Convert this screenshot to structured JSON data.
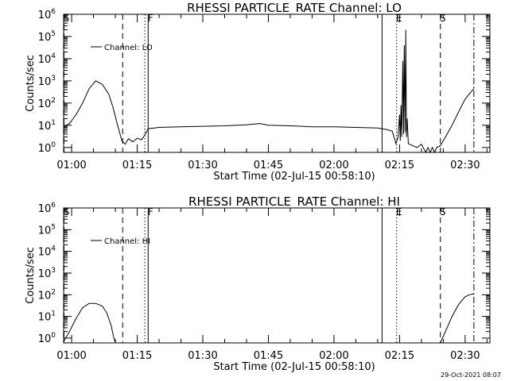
{
  "timestamp": "29-Oct-2021 08:07",
  "chart_data": [
    {
      "type": "line",
      "title": "RHESSI PARTICLE_RATE Channel: LO",
      "xlabel": "Start Time (02-Jul-15 00:58:10)",
      "ylabel": "Counts/sec",
      "legend": "Channel: LO",
      "legend_position": "top-left",
      "yscale": "log",
      "xlim": [
        "00:58:10",
        "02:35:40"
      ],
      "ylim": [
        0.6,
        1000000
      ],
      "x_ticks": [
        "01:00",
        "01:15",
        "01:30",
        "01:45",
        "02:00",
        "02:15",
        "02:30"
      ],
      "y_ticks": [
        "10^0",
        "10^1",
        "10^2",
        "10^3",
        "10^4",
        "10^5",
        "10^6"
      ],
      "markers": [
        {
          "time": "00:58:15",
          "label": "S",
          "style": "dashed"
        },
        {
          "time": "01:11:40",
          "label": "",
          "style": "dashed"
        },
        {
          "time": "01:16:45",
          "label": "",
          "style": "dotted"
        },
        {
          "time": "01:17:30",
          "label": "F",
          "style": "solid"
        },
        {
          "time": "02:11:00",
          "label": "",
          "style": "solid"
        },
        {
          "time": "02:14:20",
          "label": "E",
          "style": "dotted"
        },
        {
          "time": "02:24:20",
          "label": "S",
          "style": "dashed"
        },
        {
          "time": "02:32:00",
          "label": "",
          "style": "dashdot"
        }
      ],
      "series": [
        {
          "name": "Channel: LO",
          "points": [
            [
              "00:58:10",
              8
            ],
            [
              "00:59:30",
              12
            ],
            [
              "01:01:00",
              30
            ],
            [
              "01:02:30",
              100
            ],
            [
              "01:04:00",
              450
            ],
            [
              "01:05:30",
              1000
            ],
            [
              "01:07:00",
              700
            ],
            [
              "01:08:30",
              250
            ],
            [
              "01:09:30",
              60
            ],
            [
              "01:10:30",
              10
            ],
            [
              "01:11:30",
              2
            ],
            [
              "01:12:15",
              1.4
            ],
            [
              "01:13:00",
              2.5
            ],
            [
              "01:14:00",
              1.8
            ],
            [
              "01:15:00",
              2.6
            ],
            [
              "01:16:00",
              2.2
            ],
            [
              "01:16:40",
              3.5
            ],
            [
              "01:17:30",
              7
            ],
            [
              "01:20:00",
              8
            ],
            [
              "01:25:00",
              8.5
            ],
            [
              "01:30:00",
              9
            ],
            [
              "01:35:00",
              9.5
            ],
            [
              "01:40:00",
              10.5
            ],
            [
              "01:43:00",
              12
            ],
            [
              "01:45:00",
              10
            ],
            [
              "01:50:00",
              9.5
            ],
            [
              "01:55:00",
              8.5
            ],
            [
              "02:00:00",
              8.5
            ],
            [
              "02:05:00",
              8
            ],
            [
              "02:10:00",
              7.5
            ],
            [
              "02:12:00",
              6.5
            ],
            [
              "02:13:20",
              5.5
            ],
            [
              "02:14:10",
              1.5
            ],
            [
              "02:14:40",
              3
            ],
            [
              "02:15:00",
              30
            ],
            [
              "02:15:10",
              2
            ],
            [
              "02:15:20",
              80
            ],
            [
              "02:15:30",
              3
            ],
            [
              "02:15:45",
              8000
            ],
            [
              "02:15:55",
              4
            ],
            [
              "02:16:05",
              40000
            ],
            [
              "02:16:15",
              5
            ],
            [
              "02:16:25",
              200000
            ],
            [
              "02:16:35",
              3
            ],
            [
              "02:16:45",
              20
            ],
            [
              "02:17:00",
              1.5
            ],
            [
              "02:18:00",
              1.2
            ],
            [
              "02:19:00",
              1.0
            ],
            [
              "02:20:00",
              1.4
            ],
            [
              "02:21:00",
              0.6
            ],
            [
              "02:21:30",
              1.0
            ],
            [
              "02:22:00",
              0.6
            ],
            [
              "02:22:30",
              1.0
            ],
            [
              "02:23:00",
              0.6
            ],
            [
              "02:23:30",
              1.0
            ],
            [
              "02:24:20",
              1.2
            ],
            [
              "02:25:30",
              3
            ],
            [
              "02:27:00",
              10
            ],
            [
              "02:28:30",
              40
            ],
            [
              "02:30:00",
              150
            ],
            [
              "02:32:00",
              450
            ]
          ]
        }
      ]
    },
    {
      "type": "line",
      "title": "RHESSI PARTICLE_RATE Channel: HI",
      "xlabel": "Start Time (02-Jul-15 00:58:10)",
      "ylabel": "Counts/sec",
      "legend": "Channel: HI",
      "legend_position": "top-left",
      "yscale": "log",
      "xlim": [
        "00:58:10",
        "02:35:40"
      ],
      "ylim": [
        0.6,
        1000000
      ],
      "x_ticks": [
        "01:00",
        "01:15",
        "01:30",
        "01:45",
        "02:00",
        "02:15",
        "02:30"
      ],
      "y_ticks": [
        "10^0",
        "10^1",
        "10^2",
        "10^3",
        "10^4",
        "10^5",
        "10^6"
      ],
      "markers": [
        {
          "time": "00:58:15",
          "label": "S",
          "style": "dashed"
        },
        {
          "time": "01:11:40",
          "label": "",
          "style": "dashed"
        },
        {
          "time": "01:16:45",
          "label": "",
          "style": "dotted"
        },
        {
          "time": "01:17:30",
          "label": "F",
          "style": "solid"
        },
        {
          "time": "02:11:00",
          "label": "",
          "style": "solid"
        },
        {
          "time": "02:14:20",
          "label": "E",
          "style": "dotted"
        },
        {
          "time": "02:24:20",
          "label": "S",
          "style": "dashed"
        },
        {
          "time": "02:32:00",
          "label": "",
          "style": "dashdot"
        }
      ],
      "series": [
        {
          "name": "Channel: HI",
          "points": [
            [
              "00:58:10",
              0.7
            ],
            [
              "00:59:30",
              2
            ],
            [
              "01:01:00",
              8
            ],
            [
              "01:02:30",
              25
            ],
            [
              "01:04:00",
              40
            ],
            [
              "01:05:30",
              40
            ],
            [
              "01:07:00",
              30
            ],
            [
              "01:08:00",
              15
            ],
            [
              "01:09:00",
              4
            ],
            [
              "01:09:40",
              1
            ],
            [
              "01:10:00",
              0.6
            ],
            [
              "02:24:20",
              0.6
            ],
            [
              "02:25:30",
              2
            ],
            [
              "02:27:00",
              10
            ],
            [
              "02:28:30",
              35
            ],
            [
              "02:30:00",
              80
            ],
            [
              "02:31:00",
              100
            ],
            [
              "02:32:00",
              110
            ]
          ]
        }
      ]
    }
  ]
}
